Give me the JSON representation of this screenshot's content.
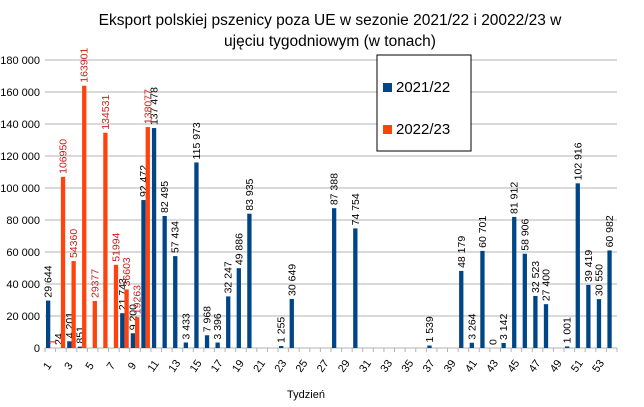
{
  "chart_data": {
    "type": "bar",
    "title": "Eksport polskiej pszenicy poza UE w sezonie 2021/22 i 20022/23 w ujęciu tygodniowym (w tonach)",
    "title_lines": [
      "Eksport polskiej pszenicy poza UE w sezonie 2021/22 i 20022/23 w",
      "ujęciu tygodniowym (w tonach)"
    ],
    "xlabel": "Tydzień",
    "ylabel": "",
    "ylim": [
      0,
      180000
    ],
    "y_ticks": [
      0,
      20000,
      40000,
      60000,
      80000,
      100000,
      120000,
      140000,
      160000,
      180000
    ],
    "y_tick_labels": [
      "0",
      "20 000",
      "40 000",
      "60 000",
      "80 000",
      "100 000",
      "120 000",
      "140 000",
      "160 000",
      "180 000"
    ],
    "x_tick_labels": [
      "1",
      "3",
      "5",
      "7",
      "9",
      "11",
      "13",
      "15",
      "17",
      "19",
      "21",
      "23",
      "25",
      "27",
      "29",
      "31",
      "33",
      "35",
      "37",
      "39",
      "41",
      "43",
      "45",
      "47",
      "49",
      "51",
      "53"
    ],
    "grid": "horizontal",
    "legend_position": "top-center",
    "series": [
      {
        "name": "2021/22",
        "color": "#004586",
        "points": [
          {
            "x": 1,
            "y": 29644,
            "label": "29 644"
          },
          {
            "x": 2,
            "y": 24,
            "label": "24"
          },
          {
            "x": 3,
            "y": 4201,
            "label": "4 201"
          },
          {
            "x": 4,
            "y": 851,
            "label": "851"
          },
          {
            "x": 8,
            "y": 21743,
            "label": "21 743"
          },
          {
            "x": 9,
            "y": 9200,
            "label": "9 200"
          },
          {
            "x": 10,
            "y": 92472,
            "label": "92 472"
          },
          {
            "x": 11,
            "y": 137478,
            "label": "137 478"
          },
          {
            "x": 12,
            "y": 82495,
            "label": "82 495"
          },
          {
            "x": 13,
            "y": 57434,
            "label": "57 434"
          },
          {
            "x": 14,
            "y": 3433,
            "label": "3 433"
          },
          {
            "x": 15,
            "y": 115973,
            "label": "115 973"
          },
          {
            "x": 16,
            "y": 7968,
            "label": "7 968"
          },
          {
            "x": 17,
            "y": 3396,
            "label": "3 396"
          },
          {
            "x": 18,
            "y": 32247,
            "label": "32 247"
          },
          {
            "x": 19,
            "y": 49886,
            "label": "49 886"
          },
          {
            "x": 20,
            "y": 83935,
            "label": "83 935"
          },
          {
            "x": 23,
            "y": 1255,
            "label": "1 255"
          },
          {
            "x": 24,
            "y": 30649,
            "label": "30 649"
          },
          {
            "x": 28,
            "y": 87388,
            "label": "87 388"
          },
          {
            "x": 30,
            "y": 74754,
            "label": "74 754"
          },
          {
            "x": 37,
            "y": 1539,
            "label": "1 539"
          },
          {
            "x": 40,
            "y": 48179,
            "label": "48 179"
          },
          {
            "x": 41,
            "y": 3264,
            "label": "3 264"
          },
          {
            "x": 42,
            "y": 60701,
            "label": "60 701"
          },
          {
            "x": 43,
            "y": 0,
            "label": "0"
          },
          {
            "x": 44,
            "y": 3142,
            "label": "3 142"
          },
          {
            "x": 45,
            "y": 81912,
            "label": "81 912"
          },
          {
            "x": 46,
            "y": 58906,
            "label": "58 906"
          },
          {
            "x": 47,
            "y": 32523,
            "label": "32 523"
          },
          {
            "x": 48,
            "y": 27400,
            "label": "27 400"
          },
          {
            "x": 50,
            "y": 1001,
            "label": "1 001"
          },
          {
            "x": 51,
            "y": 102916,
            "label": "102 916"
          },
          {
            "x": 52,
            "y": 39419,
            "label": "39 419"
          },
          {
            "x": 53,
            "y": 30550,
            "label": "30 550"
          },
          {
            "x": 54,
            "y": 60982,
            "label": "60 982"
          }
        ]
      },
      {
        "name": "2022/23",
        "color": "#ff420e",
        "points": [
          {
            "x": 1,
            "y": 1,
            "label": "1"
          },
          {
            "x": 2,
            "y": 106950,
            "label": "106950"
          },
          {
            "x": 3,
            "y": 54360,
            "label": "54360"
          },
          {
            "x": 4,
            "y": 163901,
            "label": "163901"
          },
          {
            "x": 5,
            "y": 29377,
            "label": "29377"
          },
          {
            "x": 6,
            "y": 134531,
            "label": "134531"
          },
          {
            "x": 7,
            "y": 51994,
            "label": "51994"
          },
          {
            "x": 8,
            "y": 36603,
            "label": "36603"
          },
          {
            "x": 9,
            "y": 19263,
            "label": "19263"
          },
          {
            "x": 10,
            "y": 138077,
            "label": "138077"
          }
        ]
      }
    ]
  }
}
